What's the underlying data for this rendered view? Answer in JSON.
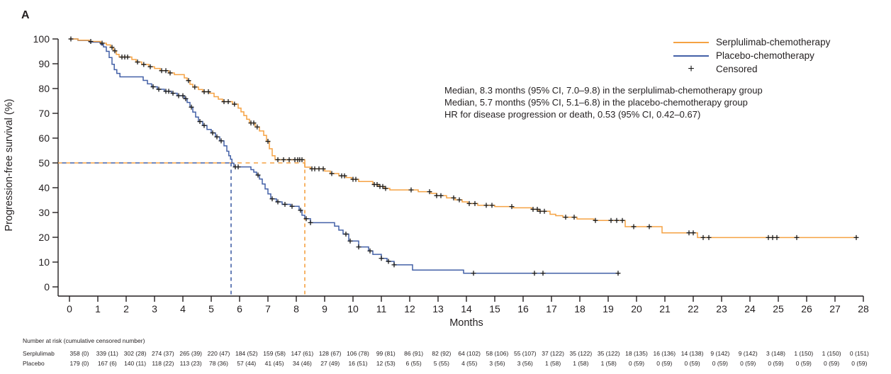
{
  "figure": {
    "panel_label": "A"
  },
  "colors": {
    "serplulimab": "#F5A243",
    "placebo": "#4360A7",
    "censor": "#1A1A1A",
    "axis": "#231F20"
  },
  "legend": {
    "items": [
      {
        "label": "Serplulimab-chemotherapy",
        "series": "serplulimab",
        "symbol": "line"
      },
      {
        "label": "Placebo-chemotherapy",
        "series": "placebo",
        "symbol": "line"
      },
      {
        "label": "Censored",
        "series": "censor",
        "symbol": "+"
      }
    ]
  },
  "annotation": {
    "lines": [
      "Median, 8.3 months (95% CI, 7.0–9.8) in the serplulimab-chemotherapy group",
      "Median, 5.7 months (95% CI, 5.1–6.8) in the placebo-chemotherapy group",
      "HR for disease progression or death, 0.53 (95% CI, 0.42–0.67)"
    ]
  },
  "chart_data": {
    "type": "line",
    "subtype": "kaplan-meier-step",
    "title": "",
    "xlabel": "Months",
    "ylabel": "Progression-free survival (%)",
    "xlim": [
      0,
      28
    ],
    "ylim": [
      0,
      100
    ],
    "grid": false,
    "legend_position": "top-right",
    "x_ticks": [
      0,
      1,
      2,
      3,
      4,
      5,
      6,
      7,
      8,
      9,
      10,
      11,
      12,
      13,
      14,
      15,
      16,
      17,
      18,
      19,
      20,
      21,
      22,
      23,
      24,
      25,
      26,
      27,
      28
    ],
    "y_ticks": [
      0,
      10,
      20,
      30,
      40,
      50,
      60,
      70,
      80,
      90,
      100
    ],
    "reference_lines": {
      "y_percent": 50,
      "median_serplulimab_months": 8.3,
      "median_placebo_months": 5.7
    },
    "series": [
      {
        "name": "Serplulimab-chemotherapy",
        "color_key": "serplulimab",
        "median_months": 8.3,
        "end_x": 27.8,
        "steps": [
          [
            0,
            100
          ],
          [
            0.3,
            99.5
          ],
          [
            0.7,
            99
          ],
          [
            1.1,
            98.3
          ],
          [
            1.3,
            97.6
          ],
          [
            1.45,
            96.6
          ],
          [
            1.55,
            95.2
          ],
          [
            1.65,
            93.8
          ],
          [
            1.75,
            92.7
          ],
          [
            2.2,
            91.7
          ],
          [
            2.35,
            90.7
          ],
          [
            2.55,
            89.7
          ],
          [
            2.8,
            88.8
          ],
          [
            3.0,
            88.1
          ],
          [
            3.2,
            87.2
          ],
          [
            3.5,
            86.3
          ],
          [
            3.7,
            85.6
          ],
          [
            4.05,
            84.3
          ],
          [
            4.15,
            83.2
          ],
          [
            4.25,
            81.7
          ],
          [
            4.35,
            80.6
          ],
          [
            4.55,
            79.6
          ],
          [
            4.7,
            78.7
          ],
          [
            4.95,
            78.1
          ],
          [
            5.1,
            76.7
          ],
          [
            5.25,
            75.7
          ],
          [
            5.4,
            74.7
          ],
          [
            5.75,
            73.7
          ],
          [
            5.95,
            72.1
          ],
          [
            6.05,
            70.6
          ],
          [
            6.15,
            69.1
          ],
          [
            6.25,
            67.6
          ],
          [
            6.35,
            66.1
          ],
          [
            6.55,
            64.5
          ],
          [
            6.7,
            62.9
          ],
          [
            6.85,
            61.1
          ],
          [
            6.95,
            58.7
          ],
          [
            7.05,
            55.7
          ],
          [
            7.15,
            52.9
          ],
          [
            7.25,
            51.3
          ],
          [
            8.3,
            48.3
          ],
          [
            8.5,
            47.6
          ],
          [
            9.0,
            46.7
          ],
          [
            9.2,
            45.7
          ],
          [
            9.5,
            44.8
          ],
          [
            9.75,
            44.1
          ],
          [
            9.95,
            43.4
          ],
          [
            10.2,
            42.5
          ],
          [
            10.7,
            41.3
          ],
          [
            10.9,
            40.5
          ],
          [
            11.1,
            39.7
          ],
          [
            11.3,
            39.1
          ],
          [
            12.3,
            38.4
          ],
          [
            12.75,
            37.7
          ],
          [
            12.95,
            36.8
          ],
          [
            13.3,
            35.9
          ],
          [
            13.6,
            35.1
          ],
          [
            13.85,
            34.3
          ],
          [
            14.05,
            33.6
          ],
          [
            14.4,
            32.9
          ],
          [
            15.0,
            32.4
          ],
          [
            15.65,
            31.9
          ],
          [
            16.3,
            31.3
          ],
          [
            16.55,
            30.5
          ],
          [
            16.95,
            29.3
          ],
          [
            17.15,
            28.7
          ],
          [
            17.4,
            28.1
          ],
          [
            17.9,
            27.4
          ],
          [
            18.5,
            26.8
          ],
          [
            19.6,
            24.3
          ],
          [
            20.9,
            21.8
          ],
          [
            22.15,
            19.9
          ]
        ],
        "censors": [
          0.05,
          0.75,
          1.15,
          1.5,
          1.6,
          1.85,
          1.95,
          2.05,
          2.4,
          2.62,
          2.85,
          3.25,
          3.4,
          3.55,
          4.2,
          4.42,
          4.75,
          4.9,
          5.45,
          5.6,
          5.82,
          6.4,
          6.5,
          6.62,
          7.0,
          7.35,
          7.55,
          7.75,
          7.95,
          8.05,
          8.12,
          8.2,
          8.55,
          8.65,
          8.8,
          8.95,
          9.25,
          9.6,
          9.7,
          10.0,
          10.1,
          10.75,
          10.85,
          10.95,
          11.05,
          11.15,
          12.05,
          12.7,
          12.95,
          13.1,
          13.55,
          13.75,
          14.1,
          14.3,
          14.7,
          14.9,
          15.6,
          16.35,
          16.5,
          16.6,
          16.75,
          17.5,
          17.8,
          18.55,
          19.1,
          19.3,
          19.5,
          19.9,
          20.45,
          21.85,
          22.0,
          22.35,
          22.55,
          24.65,
          24.8,
          24.95,
          25.65,
          27.75
        ]
      },
      {
        "name": "Placebo-chemotherapy",
        "color_key": "placebo",
        "median_months": 5.7,
        "end_x": 19.4,
        "steps": [
          [
            0,
            100
          ],
          [
            0.3,
            99.4
          ],
          [
            0.7,
            98.7
          ],
          [
            1.1,
            97.8
          ],
          [
            1.2,
            96.8
          ],
          [
            1.3,
            95
          ],
          [
            1.4,
            92.5
          ],
          [
            1.5,
            89.8
          ],
          [
            1.58,
            87.6
          ],
          [
            1.67,
            86.1
          ],
          [
            1.78,
            84.7
          ],
          [
            2.6,
            83.3
          ],
          [
            2.75,
            81.9
          ],
          [
            2.9,
            80.7
          ],
          [
            3.1,
            79.7
          ],
          [
            3.35,
            78.9
          ],
          [
            3.6,
            78.1
          ],
          [
            3.8,
            77.1
          ],
          [
            4.05,
            75.9
          ],
          [
            4.15,
            74.4
          ],
          [
            4.25,
            72.5
          ],
          [
            4.35,
            70.5
          ],
          [
            4.45,
            68.5
          ],
          [
            4.55,
            66.7
          ],
          [
            4.7,
            65.1
          ],
          [
            4.85,
            63.5
          ],
          [
            5.0,
            62.1
          ],
          [
            5.15,
            60.5
          ],
          [
            5.3,
            58.9
          ],
          [
            5.45,
            56.9
          ],
          [
            5.55,
            54.7
          ],
          [
            5.62,
            52.9
          ],
          [
            5.68,
            51.5
          ],
          [
            5.73,
            49.9
          ],
          [
            5.8,
            48.4
          ],
          [
            6.4,
            47.3
          ],
          [
            6.5,
            46.3
          ],
          [
            6.6,
            45.1
          ],
          [
            6.7,
            43.5
          ],
          [
            6.8,
            41.5
          ],
          [
            6.9,
            39.5
          ],
          [
            7.0,
            37.5
          ],
          [
            7.1,
            35.5
          ],
          [
            7.3,
            34.3
          ],
          [
            7.5,
            33.3
          ],
          [
            7.8,
            32.5
          ],
          [
            8.1,
            30.9
          ],
          [
            8.2,
            28.9
          ],
          [
            8.3,
            27.5
          ],
          [
            8.5,
            25.9
          ],
          [
            9.35,
            24.5
          ],
          [
            9.5,
            22.9
          ],
          [
            9.65,
            21.3
          ],
          [
            9.85,
            18.5
          ],
          [
            10.2,
            16.1
          ],
          [
            10.55,
            14.5
          ],
          [
            10.7,
            13.1
          ],
          [
            11.0,
            11.5
          ],
          [
            11.2,
            10.3
          ],
          [
            11.45,
            8.9
          ],
          [
            12.1,
            6.8
          ],
          [
            13.9,
            5.5
          ]
        ],
        "censors": [
          2.95,
          3.15,
          3.4,
          3.5,
          3.65,
          3.85,
          4.0,
          4.1,
          4.3,
          4.6,
          4.75,
          5.05,
          5.2,
          5.35,
          5.85,
          5.95,
          6.65,
          7.15,
          7.35,
          7.6,
          7.85,
          8.15,
          8.35,
          8.5,
          9.75,
          9.9,
          10.2,
          10.6,
          11.0,
          11.25,
          11.45,
          14.25,
          16.4,
          16.7,
          19.35
        ]
      }
    ]
  },
  "risk_table": {
    "header": "Number at risk (cumulative censored number)",
    "rows": [
      {
        "label": "Serplulimab",
        "values": [
          "358 (0)",
          "339 (11)",
          "302 (28)",
          "274 (37)",
          "265 (39)",
          "220 (47)",
          "184 (52)",
          "159 (58)",
          "147 (61)",
          "128 (67)",
          "106 (78)",
          "99 (81)",
          "86 (91)",
          "82 (92)",
          "64 (102)",
          "58 (106)",
          "55 (107)",
          "37 (122)",
          "35 (122)",
          "35 (122)",
          "18 (135)",
          "16 (136)",
          "14 (138)",
          "9 (142)",
          "9 (142)",
          "3 (148)",
          "1 (150)",
          "1 (150)",
          "0 (151)"
        ]
      },
      {
        "label": "Placebo",
        "values": [
          "179 (0)",
          "167 (6)",
          "140 (11)",
          "118 (22)",
          "113 (23)",
          "78 (36)",
          "57 (44)",
          "41 (45)",
          "34 (46)",
          "27 (49)",
          "16 (51)",
          "12 (53)",
          "6 (55)",
          "5 (55)",
          "4 (55)",
          "3 (56)",
          "3 (56)",
          "1 (58)",
          "1 (58)",
          "1 (58)",
          "0 (59)",
          "0 (59)",
          "0 (59)",
          "0 (59)",
          "0 (59)",
          "0 (59)",
          "0 (59)",
          "0 (59)",
          "0 (59)"
        ]
      }
    ]
  }
}
